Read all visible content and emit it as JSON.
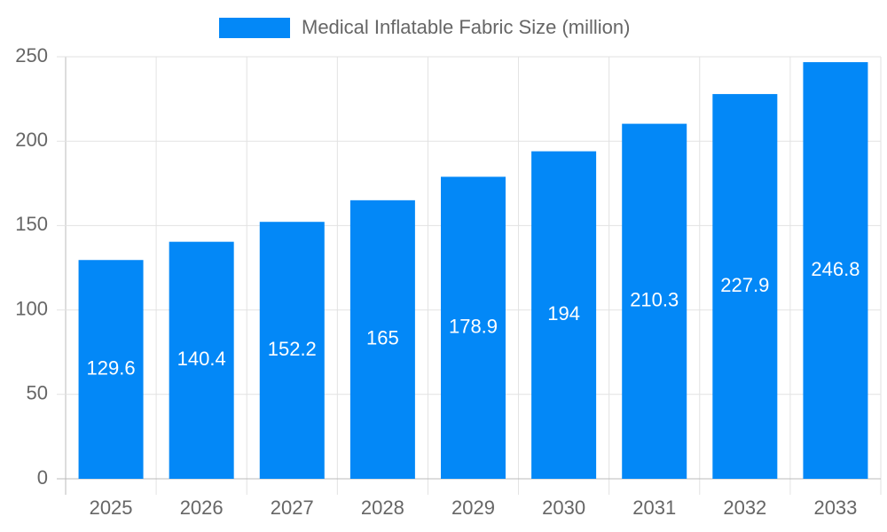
{
  "chart_data": {
    "type": "bar",
    "categories": [
      "2025",
      "2026",
      "2027",
      "2028",
      "2029",
      "2030",
      "2031",
      "2032",
      "2033"
    ],
    "series": [
      {
        "name": "Medical Inflatable Fabric Size (million)",
        "color": "#0388f7",
        "values": [
          129.6,
          140.4,
          152.2,
          165,
          178.9,
          194,
          210.3,
          227.9,
          246.8
        ]
      }
    ],
    "ylim": [
      0,
      250
    ],
    "yticks": [
      0,
      50,
      100,
      150,
      200,
      250
    ],
    "grid": true,
    "legend": "top"
  }
}
